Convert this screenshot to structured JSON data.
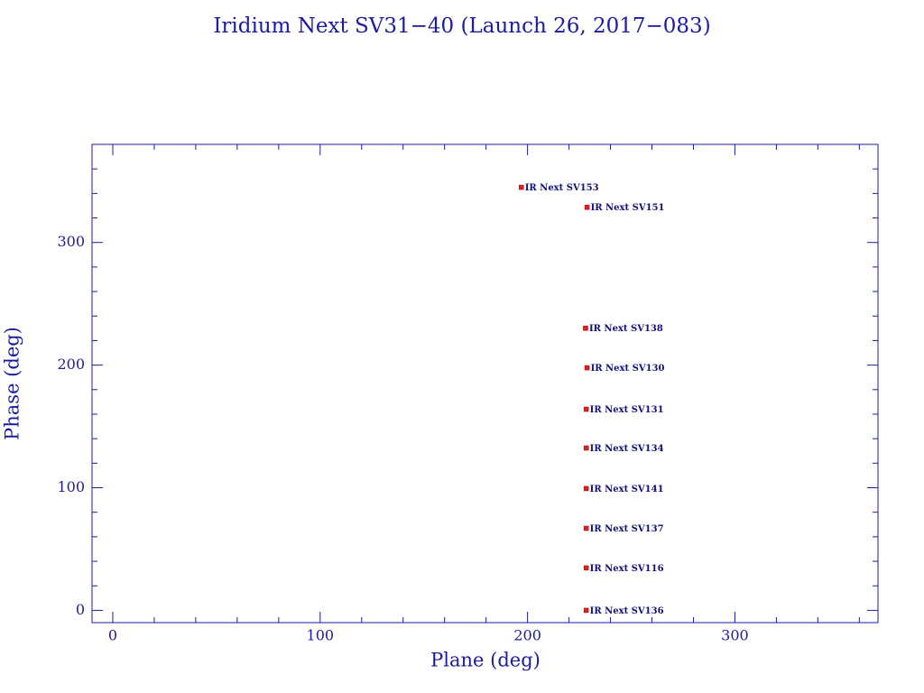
{
  "chart_data": {
    "type": "scatter",
    "title": "Iridium Next SV31−40 (Launch 26, 2017−083)",
    "xlabel": "Plane (deg)",
    "ylabel": "Phase (deg)",
    "xlim": [
      -10,
      369
    ],
    "ylim": [
      -10,
      380
    ],
    "xticks": [
      0,
      100,
      200,
      300
    ],
    "yticks": [
      0,
      100,
      200,
      300
    ],
    "xminorticks": [
      20,
      40,
      60,
      80,
      120,
      140,
      160,
      180,
      220,
      240,
      260,
      280,
      320,
      340,
      360
    ],
    "yminorticks": [
      20,
      40,
      60,
      80,
      120,
      140,
      160,
      180,
      220,
      240,
      260,
      280,
      320,
      340,
      360
    ],
    "series": [
      {
        "color": "#e02020",
        "x": [
          197,
          228.7,
          228,
          228.7,
          228.3,
          228.3,
          228.3,
          228.3,
          228.3,
          228.3
        ],
        "values": [
          345,
          328.7,
          230.1,
          197.8,
          164,
          132.4,
          99.3,
          66.9,
          34.6,
          0
        ],
        "point_labels": [
          "IR Next SV153",
          "IR Next SV151",
          "IR Next SV138",
          "IR Next SV130",
          "IR Next SV131",
          "IR Next SV134",
          "IR Next SV141",
          "IR Next SV137",
          "IR Next SV116",
          "IR Next SV136"
        ]
      }
    ]
  }
}
